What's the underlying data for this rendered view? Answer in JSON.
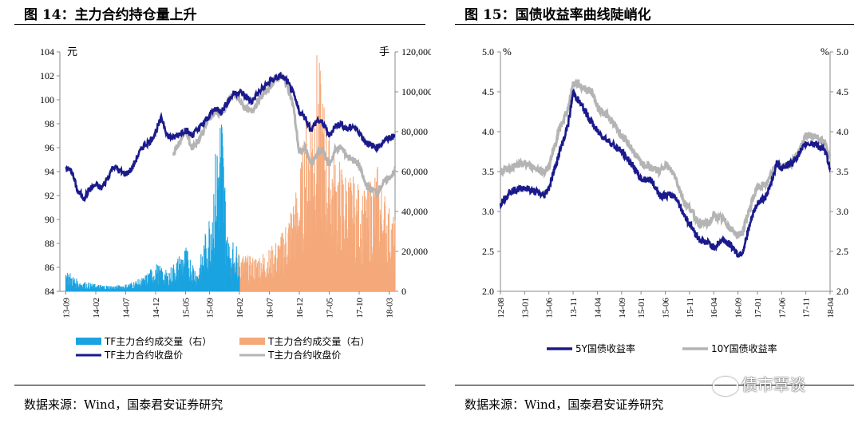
{
  "left": {
    "title": "图 14：主力合约持仓量上升",
    "source": "数据来源：Wind，国泰君安证券研究",
    "left_unit": "元",
    "right_unit": "手",
    "legend": [
      "TF主力合约成交量（右）",
      "T主力合约成交量（右）",
      "TF主力合约收盘价",
      "T主力合约收盘价"
    ]
  },
  "right": {
    "title": "图 15：国债收益率曲线陡峭化",
    "source": "数据来源：Wind，国泰君安证券研究",
    "left_unit": "%",
    "right_unit": "%",
    "legend": [
      "5Y国债收益率",
      "10Y国债收益率"
    ]
  },
  "watermark": "债市覃谈",
  "colors": {
    "tf_volume": "#1aa3e0",
    "t_volume": "#f5a97a",
    "tf_price": "#1a1a8c",
    "t_price": "#b4b4b4",
    "y5": "#1a1a8c",
    "y10": "#b4b4b4"
  },
  "chart_data": [
    {
      "type": "line",
      "title": "图 14：主力合约持仓量上升",
      "x_ticks": [
        "13-09",
        "14-02",
        "14-07",
        "14-12",
        "15-05",
        "15-09",
        "16-02",
        "16-07",
        "16-12",
        "17-05",
        "17-10",
        "18-03"
      ],
      "y_left": {
        "label": "元",
        "ylim": [
          84,
          104
        ],
        "ticks": [
          "84",
          "86",
          "88",
          "90",
          "92",
          "94",
          "96",
          "98",
          "100",
          "102",
          "104"
        ]
      },
      "y_right": {
        "label": "手",
        "ylim": [
          0,
          120000
        ],
        "ticks": [
          "0",
          "20,000",
          "40,000",
          "60,000",
          "80,000",
          "100,000",
          "120,000"
        ]
      },
      "series": [
        {
          "name": "TF主力合约成交量（右）",
          "kind": "area",
          "axis": "right",
          "points": [
            [
              "13-09",
              8000
            ],
            [
              "13-11",
              4000
            ],
            [
              "14-02",
              2500
            ],
            [
              "14-05",
              2000
            ],
            [
              "14-07",
              2500
            ],
            [
              "14-10",
              5000
            ],
            [
              "14-12",
              10000
            ],
            [
              "15-02",
              7000
            ],
            [
              "15-05",
              16000
            ],
            [
              "15-07",
              7000
            ],
            [
              "15-09",
              28000
            ],
            [
              "15-11",
              70000
            ],
            [
              "15-12",
              20000
            ],
            [
              "16-02",
              15000
            ]
          ]
        },
        {
          "name": "T主力合约成交量（右）",
          "kind": "area",
          "axis": "right",
          "points": [
            [
              "15-07",
              5000
            ],
            [
              "15-09",
              10000
            ],
            [
              "15-12",
              12000
            ],
            [
              "16-02",
              14000
            ],
            [
              "16-04",
              12000
            ],
            [
              "16-07",
              15000
            ],
            [
              "16-09",
              20000
            ],
            [
              "16-12",
              40000
            ],
            [
              "17-01",
              60000
            ],
            [
              "17-03",
              85000
            ],
            [
              "17-05",
              55000
            ],
            [
              "17-07",
              45000
            ],
            [
              "17-09",
              40000
            ],
            [
              "17-11",
              35000
            ],
            [
              "18-01",
              45000
            ],
            [
              "18-03",
              30000
            ],
            [
              "18-04",
              25000
            ]
          ]
        },
        {
          "name": "TF主力合约收盘价",
          "kind": "line",
          "axis": "left",
          "points": [
            [
              "13-09",
              94.3
            ],
            [
              "13-10",
              94.0
            ],
            [
              "13-11",
              92.3
            ],
            [
              "13-12",
              91.8
            ],
            [
              "14-01",
              92.5
            ],
            [
              "14-02",
              92.9
            ],
            [
              "14-03",
              92.6
            ],
            [
              "14-04",
              93.5
            ],
            [
              "14-05",
              94.5
            ],
            [
              "14-06",
              94.0
            ],
            [
              "14-07",
              93.8
            ],
            [
              "14-08",
              94.2
            ],
            [
              "14-09",
              95.3
            ],
            [
              "14-10",
              96.2
            ],
            [
              "14-11",
              96.5
            ],
            [
              "14-12",
              97.3
            ],
            [
              "15-01",
              98.5
            ],
            [
              "15-02",
              97.0
            ],
            [
              "15-03",
              96.8
            ],
            [
              "15-04",
              97.2
            ],
            [
              "15-05",
              97.5
            ],
            [
              "15-06",
              97.0
            ],
            [
              "15-07",
              97.5
            ],
            [
              "15-08",
              98.0
            ],
            [
              "15-09",
              98.7
            ],
            [
              "15-10",
              99.3
            ],
            [
              "15-11",
              99.0
            ],
            [
              "15-12",
              99.8
            ],
            [
              "16-01",
              100.5
            ],
            [
              "16-02",
              100.7
            ],
            [
              "16-03",
              100.3
            ],
            [
              "16-04",
              99.8
            ],
            [
              "16-05",
              100.5
            ],
            [
              "16-06",
              101.0
            ],
            [
              "16-07",
              101.5
            ],
            [
              "16-08",
              101.8
            ],
            [
              "16-09",
              102.0
            ],
            [
              "16-10",
              101.5
            ],
            [
              "16-11",
              100.5
            ],
            [
              "16-12",
              99.0
            ],
            [
              "17-01",
              98.5
            ],
            [
              "17-02",
              97.5
            ],
            [
              "17-03",
              98.3
            ],
            [
              "17-04",
              98.0
            ],
            [
              "17-05",
              97.0
            ],
            [
              "17-06",
              97.8
            ],
            [
              "17-07",
              98.0
            ],
            [
              "17-08",
              97.5
            ],
            [
              "17-09",
              97.8
            ],
            [
              "17-10",
              97.3
            ],
            [
              "17-11",
              96.5
            ],
            [
              "17-12",
              96.2
            ],
            [
              "18-01",
              96.0
            ],
            [
              "18-02",
              96.5
            ],
            [
              "18-03",
              96.8
            ],
            [
              "18-04",
              97.0
            ]
          ]
        },
        {
          "name": "T主力合约收盘价",
          "kind": "line",
          "axis": "left",
          "points": [
            [
              "15-03",
              95.5
            ],
            [
              "15-04",
              96.5
            ],
            [
              "15-05",
              97.5
            ],
            [
              "15-06",
              96.0
            ],
            [
              "15-07",
              96.5
            ],
            [
              "15-08",
              97.5
            ],
            [
              "15-09",
              98.5
            ],
            [
              "15-10",
              99.0
            ],
            [
              "15-11",
              98.8
            ],
            [
              "15-12",
              99.8
            ],
            [
              "16-01",
              100.5
            ],
            [
              "16-02",
              100.0
            ],
            [
              "16-03",
              99.3
            ],
            [
              "16-04",
              99.0
            ],
            [
              "16-05",
              99.8
            ],
            [
              "16-06",
              100.5
            ],
            [
              "16-07",
              101.0
            ],
            [
              "16-08",
              101.8
            ],
            [
              "16-09",
              102.0
            ],
            [
              "16-10",
              101.2
            ],
            [
              "16-11",
              99.5
            ],
            [
              "16-12",
              95.5
            ],
            [
              "17-01",
              96.0
            ],
            [
              "17-02",
              94.5
            ],
            [
              "17-03",
              95.5
            ],
            [
              "17-04",
              95.8
            ],
            [
              "17-05",
              94.5
            ],
            [
              "17-06",
              95.8
            ],
            [
              "17-07",
              96.0
            ],
            [
              "17-08",
              95.3
            ],
            [
              "17-09",
              95.0
            ],
            [
              "17-10",
              94.5
            ],
            [
              "17-11",
              93.0
            ],
            [
              "17-12",
              92.5
            ],
            [
              "18-01",
              92.3
            ],
            [
              "18-02",
              93.0
            ],
            [
              "18-03",
              93.5
            ],
            [
              "18-04",
              94.0
            ]
          ]
        }
      ],
      "legend_placement": "bottom"
    },
    {
      "type": "line",
      "title": "图 15：国债收益率曲线陡峭化",
      "x_ticks": [
        "12-08",
        "13-01",
        "13-06",
        "13-11",
        "14-04",
        "14-09",
        "15-01",
        "15-06",
        "15-11",
        "16-04",
        "16-09",
        "17-01",
        "17-06",
        "17-11",
        "18-04"
      ],
      "y_left": {
        "label": "%",
        "ylim": [
          2.0,
          5.0
        ],
        "ticks": [
          "2.0",
          "2.5",
          "3.0",
          "3.5",
          "4.0",
          "4.5",
          "5.0"
        ]
      },
      "y_right": {
        "label": "%",
        "ylim": [
          2.0,
          5.0
        ],
        "ticks": [
          "2.0",
          "2.5",
          "3.0",
          "3.5",
          "4.0",
          "4.5",
          "5.0"
        ]
      },
      "series": [
        {
          "name": "5Y国债收益率",
          "kind": "line",
          "points": [
            [
              "12-08",
              3.1
            ],
            [
              "12-10",
              3.25
            ],
            [
              "13-01",
              3.3
            ],
            [
              "13-03",
              3.25
            ],
            [
              "13-05",
              3.2
            ],
            [
              "13-06",
              3.3
            ],
            [
              "13-08",
              3.7
            ],
            [
              "13-10",
              4.1
            ],
            [
              "13-11",
              4.5
            ],
            [
              "13-12",
              4.4
            ],
            [
              "14-01",
              4.3
            ],
            [
              "14-03",
              4.1
            ],
            [
              "14-04",
              4.0
            ],
            [
              "14-06",
              3.9
            ],
            [
              "14-08",
              3.8
            ],
            [
              "14-09",
              3.75
            ],
            [
              "14-11",
              3.6
            ],
            [
              "15-01",
              3.4
            ],
            [
              "15-03",
              3.4
            ],
            [
              "15-05",
              3.2
            ],
            [
              "15-06",
              3.2
            ],
            [
              "15-08",
              3.2
            ],
            [
              "15-10",
              2.95
            ],
            [
              "15-11",
              2.85
            ],
            [
              "16-01",
              2.65
            ],
            [
              "16-03",
              2.6
            ],
            [
              "16-04",
              2.55
            ],
            [
              "16-06",
              2.65
            ],
            [
              "16-08",
              2.55
            ],
            [
              "16-09",
              2.45
            ],
            [
              "16-10",
              2.5
            ],
            [
              "16-12",
              2.95
            ],
            [
              "17-01",
              3.1
            ],
            [
              "17-03",
              3.2
            ],
            [
              "17-05",
              3.6
            ],
            [
              "17-06",
              3.55
            ],
            [
              "17-08",
              3.6
            ],
            [
              "17-10",
              3.75
            ],
            [
              "17-11",
              3.85
            ],
            [
              "18-01",
              3.85
            ],
            [
              "18-03",
              3.75
            ],
            [
              "18-04",
              3.55
            ]
          ]
        },
        {
          "name": "10Y国债收益率",
          "kind": "line",
          "points": [
            [
              "12-08",
              3.5
            ],
            [
              "12-10",
              3.55
            ],
            [
              "13-01",
              3.6
            ],
            [
              "13-03",
              3.55
            ],
            [
              "13-05",
              3.5
            ],
            [
              "13-06",
              3.55
            ],
            [
              "13-08",
              4.0
            ],
            [
              "13-10",
              4.3
            ],
            [
              "13-11",
              4.6
            ],
            [
              "13-12",
              4.6
            ],
            [
              "14-01",
              4.55
            ],
            [
              "14-03",
              4.5
            ],
            [
              "14-04",
              4.3
            ],
            [
              "14-06",
              4.2
            ],
            [
              "14-08",
              4.05
            ],
            [
              "14-09",
              3.95
            ],
            [
              "14-11",
              3.8
            ],
            [
              "15-01",
              3.6
            ],
            [
              "15-03",
              3.55
            ],
            [
              "15-05",
              3.5
            ],
            [
              "15-06",
              3.6
            ],
            [
              "15-08",
              3.45
            ],
            [
              "15-10",
              3.1
            ],
            [
              "15-11",
              3.05
            ],
            [
              "16-01",
              2.85
            ],
            [
              "16-03",
              2.85
            ],
            [
              "16-04",
              2.95
            ],
            [
              "16-06",
              2.9
            ],
            [
              "16-08",
              2.75
            ],
            [
              "16-09",
              2.7
            ],
            [
              "16-10",
              2.75
            ],
            [
              "16-12",
              3.15
            ],
            [
              "17-01",
              3.3
            ],
            [
              "17-03",
              3.35
            ],
            [
              "17-05",
              3.6
            ],
            [
              "17-06",
              3.55
            ],
            [
              "17-08",
              3.6
            ],
            [
              "17-10",
              3.8
            ],
            [
              "17-11",
              3.95
            ],
            [
              "18-01",
              3.95
            ],
            [
              "18-03",
              3.85
            ],
            [
              "18-04",
              3.7
            ]
          ]
        }
      ],
      "legend_placement": "bottom"
    }
  ]
}
